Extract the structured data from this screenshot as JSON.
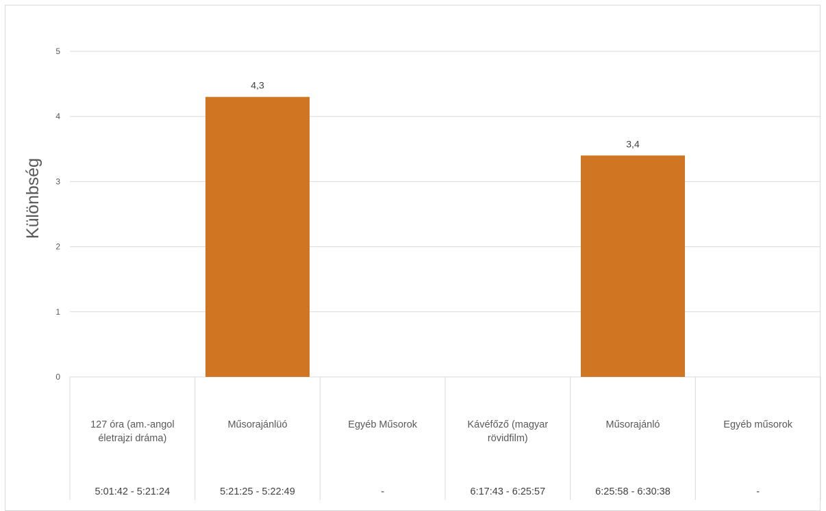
{
  "chart_data": {
    "type": "bar",
    "ylabel": "Különbség",
    "ylim": [
      0,
      5
    ],
    "yticks": [
      "0",
      "1",
      "2",
      "3",
      "4",
      "5"
    ],
    "grid": true,
    "categories": [
      {
        "name": [
          "127 óra (am.-angol",
          "életrajzi dráma)"
        ],
        "time": "5:01:42 - 5:21:24"
      },
      {
        "name": [
          "Műsorajánlüó"
        ],
        "time": "5:21:25 - 5:22:49"
      },
      {
        "name": [
          "Egyéb Műsorok"
        ],
        "time": "-"
      },
      {
        "name": [
          "Kávéfőző (magyar",
          "rövidfilm)"
        ],
        "time": "6:17:43 - 6:25:57"
      },
      {
        "name": [
          "Műsorajánló"
        ],
        "time": "6:25:58 - 6:30:38"
      },
      {
        "name": [
          "Egyéb műsorok"
        ],
        "time": "-"
      }
    ],
    "values": [
      null,
      4.3,
      null,
      null,
      3.4,
      null
    ],
    "value_labels": [
      "",
      "4,3",
      "",
      "",
      "3,4",
      ""
    ],
    "colors": {
      "bar": "#d07522",
      "grid": "#d9d9d9"
    }
  }
}
